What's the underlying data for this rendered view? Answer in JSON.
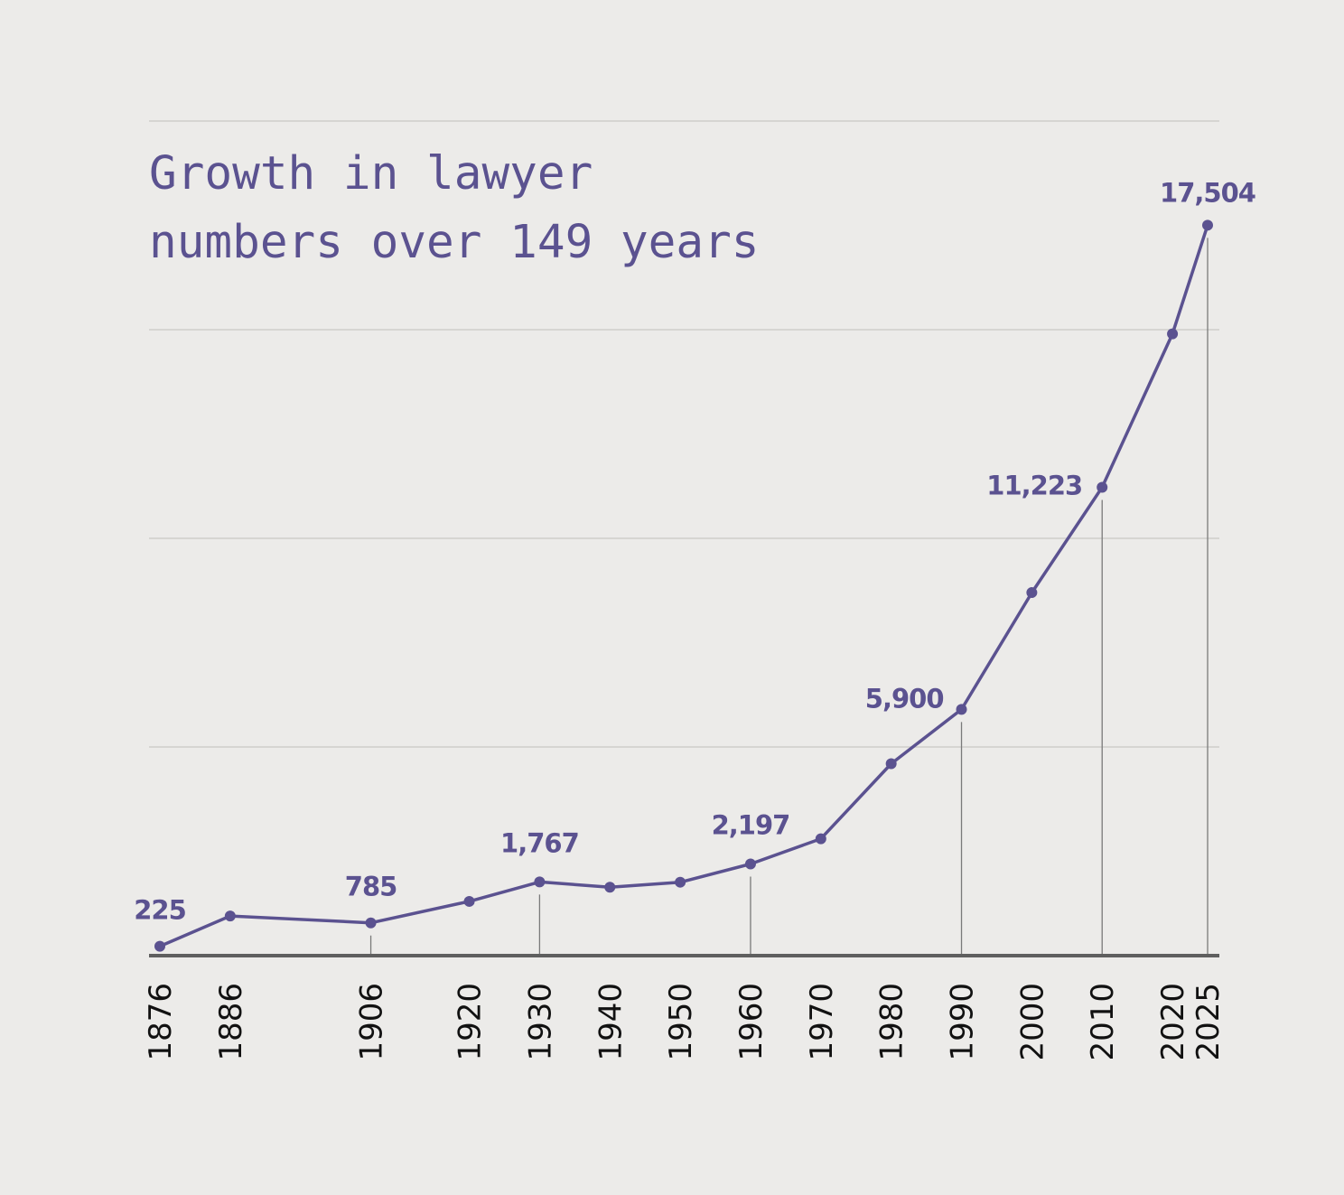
{
  "chart_data": {
    "type": "line",
    "title": "Growth in lawyer numbers over 149 years",
    "title_lines": [
      "Growth in lawyer",
      "numbers over 149 years"
    ],
    "x": [
      1876,
      1886,
      1906,
      1920,
      1930,
      1940,
      1950,
      1960,
      1970,
      1980,
      1990,
      2000,
      2010,
      2020,
      2025
    ],
    "y": [
      225,
      950,
      785,
      1300,
      1767,
      1640,
      1760,
      2197,
      2800,
      4600,
      5900,
      8700,
      11223,
      14900,
      17504
    ],
    "tick_labels": [
      "1876",
      "1886",
      "1906",
      "1920",
      "1930",
      "1940",
      "1950",
      "1960",
      "1970",
      "1980",
      "1990",
      "2000",
      "2010",
      "2020",
      "2025"
    ],
    "point_labels": [
      {
        "x": 1876,
        "text": "225"
      },
      {
        "x": 1906,
        "text": "785"
      },
      {
        "x": 1930,
        "text": "1,767"
      },
      {
        "x": 1960,
        "text": "2,197"
      },
      {
        "x": 1990,
        "text": "5,900"
      },
      {
        "x": 2010,
        "text": "11,223"
      },
      {
        "x": 2025,
        "text": "17,504"
      }
    ],
    "xlim": [
      1876,
      2025
    ],
    "ylim": [
      0,
      20000
    ],
    "gridlines_y": [
      5000,
      10000,
      15000,
      20000
    ],
    "grid": true,
    "xlabel": "",
    "ylabel": "",
    "colors": {
      "line": "#5b5290",
      "grid": "#cfcecb",
      "axis": "#5f5f5f",
      "leader": "#7a7a7a",
      "tick_text": "#111111"
    }
  }
}
